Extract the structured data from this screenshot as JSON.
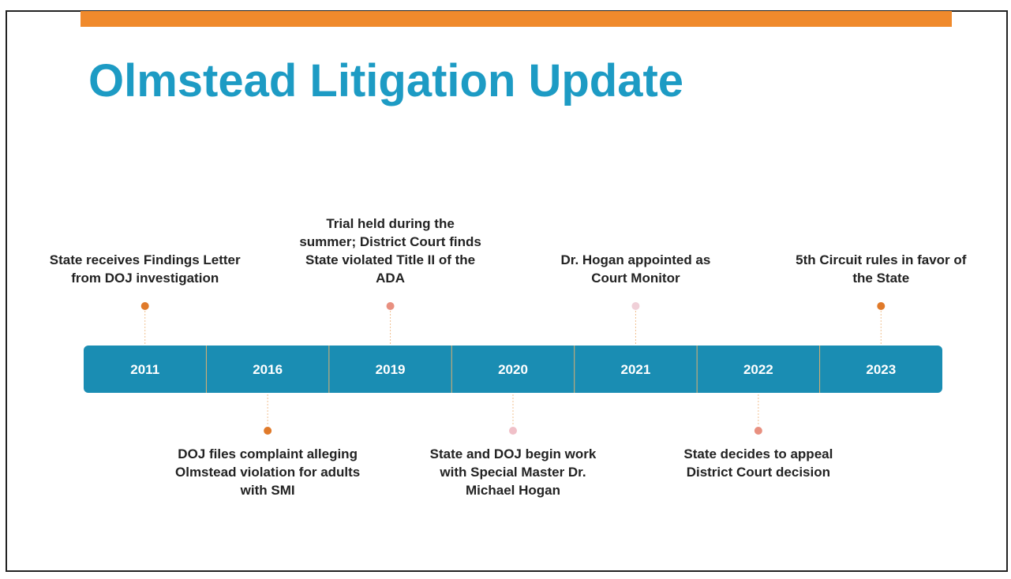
{
  "title": "Olmstead Litigation Update",
  "events": [
    {
      "year": "2011",
      "text": [
        "State receives Findings Letter",
        "from DOJ investigation"
      ]
    },
    {
      "year": "2016",
      "text": [
        "DOJ files complaint alleging",
        "Olmstead violation for adults",
        "with SMI"
      ]
    },
    {
      "year": "2019",
      "text": [
        "Trial held during the",
        "summer; District Court finds",
        "State violated Title II of the",
        "ADA"
      ]
    },
    {
      "year": "2020",
      "text": [
        "State and DOJ begin work",
        "with Special Master Dr.",
        "Michael Hogan"
      ]
    },
    {
      "year": "2021",
      "text": [
        "Dr. Hogan appointed as",
        "Court Monitor"
      ]
    },
    {
      "year": "2022",
      "text": [
        "State decides to appeal",
        "District Court decision"
      ]
    },
    {
      "year": "2023",
      "text": [
        "5th Circuit rules in favor of",
        "the State"
      ]
    }
  ]
}
